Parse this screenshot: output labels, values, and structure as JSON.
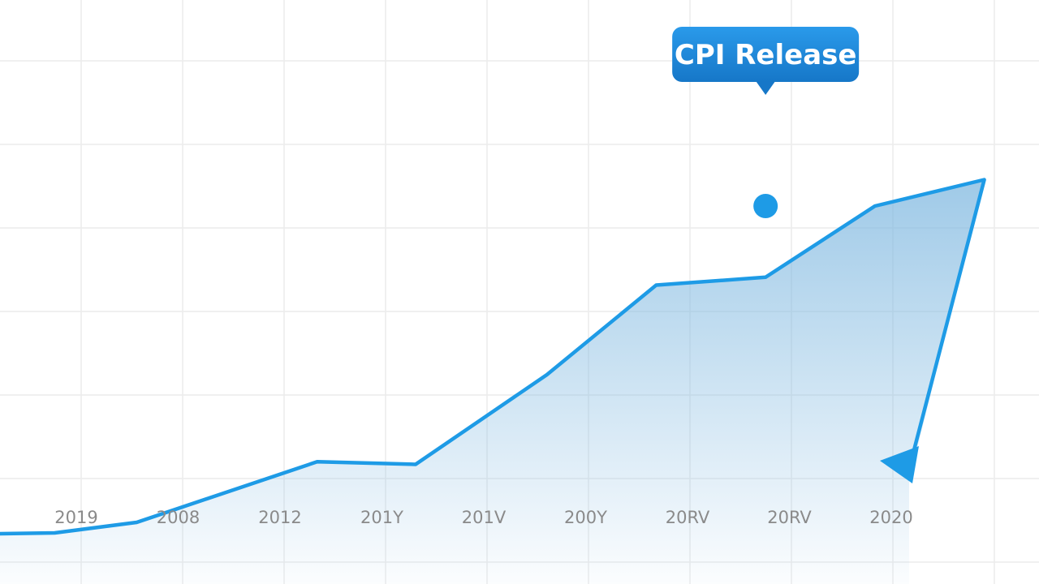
{
  "chart_data": {
    "type": "area",
    "x_tick_labels": [
      "2019",
      "2008",
      "2012",
      "201Y",
      "201V",
      "200Y",
      "20RV",
      "20RV",
      "2020"
    ],
    "x": [
      0,
      0.75,
      2.4,
      3.3,
      4.5,
      5.5,
      6.5,
      7.5,
      8.5
    ],
    "y": [
      2,
      4,
      15.5,
      15,
      32,
      49,
      50.5,
      64,
      69
    ],
    "xlim": [
      -0.5,
      9
    ],
    "ylim": [
      0,
      100
    ],
    "grid": true,
    "annotation": {
      "label": "CPI Release",
      "x": 6.5,
      "y": 64
    },
    "trend_after_last_point": "down",
    "colors": {
      "line": "#1e9be6",
      "fill": "#7fb8e0",
      "callout": "#1e88d8",
      "grid": "#ececec",
      "tick_text": "#8a8a8a"
    }
  }
}
